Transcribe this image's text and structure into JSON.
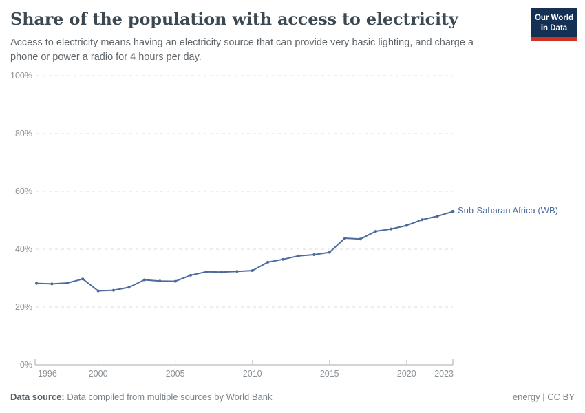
{
  "header": {
    "title": "Share of the population with access to electricity",
    "subtitle": "Access to electricity means having an electricity source that can provide very basic lighting, and charge a phone or power a radio for 4 hours per day.",
    "logo": {
      "line1": "Our World",
      "line2": "in Data",
      "bg_color": "#143054",
      "accent_color": "#cf3225"
    }
  },
  "chart_data": {
    "type": "line",
    "title": "Share of the population with access to electricity",
    "xlabel": "",
    "ylabel": "",
    "xlim": [
      1996,
      2023
    ],
    "ylim": [
      0,
      100
    ],
    "grid": "horizontal-dashed",
    "legend_position": "end-of-line-label",
    "x_ticks": [
      1996,
      2000,
      2005,
      2010,
      2015,
      2020,
      2023
    ],
    "y_tick_values": [
      0,
      20,
      40,
      60,
      80,
      100
    ],
    "y_tick_labels": [
      "0%",
      "20%",
      "40%",
      "60%",
      "80%",
      "100%"
    ],
    "series": [
      {
        "name": "Sub-Saharan Africa (WB)",
        "color": "#4C6A9C",
        "x": [
          1996,
          1997,
          1998,
          1999,
          2000,
          2001,
          2002,
          2003,
          2004,
          2005,
          2006,
          2007,
          2008,
          2009,
          2010,
          2011,
          2012,
          2013,
          2014,
          2015,
          2016,
          2017,
          2018,
          2019,
          2020,
          2021,
          2022,
          2023
        ],
        "values": [
          28.2,
          28.0,
          28.3,
          29.7,
          25.6,
          25.8,
          26.8,
          29.4,
          29.0,
          28.9,
          31.0,
          32.2,
          32.1,
          32.3,
          32.6,
          35.5,
          36.5,
          37.7,
          38.1,
          38.9,
          43.8,
          43.5,
          46.2,
          47.0,
          48.2,
          50.2,
          51.4,
          53.0
        ]
      }
    ]
  },
  "footer": {
    "source_label": "Data source:",
    "source_text": "Data compiled from multiple sources by World Bank",
    "license": "energy | CC BY"
  }
}
